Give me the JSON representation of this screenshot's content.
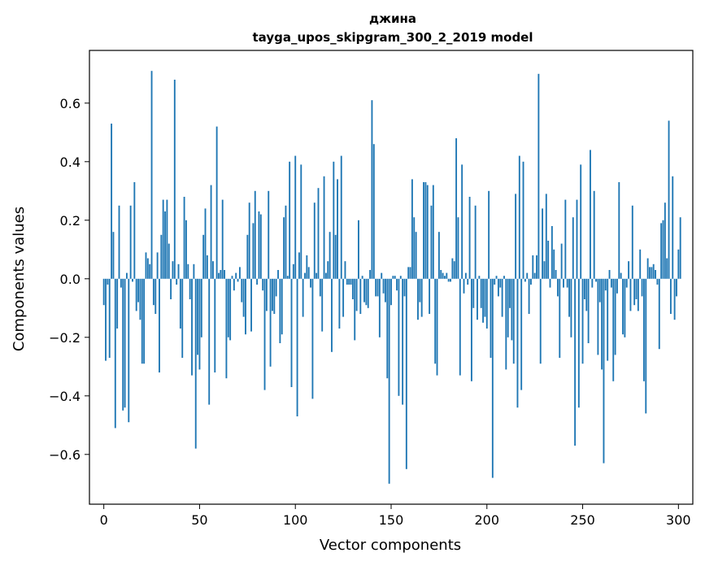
{
  "chart_data": {
    "type": "bar",
    "title": "джина",
    "subtitle": "tayga_upos_skipgram_300_2_2019 model",
    "xlabel": "Vector components",
    "ylabel": "Components values",
    "xlim": [
      -7.5,
      307.5
    ],
    "ylim": [
      -0.77,
      0.78
    ],
    "xticks": [
      0,
      50,
      100,
      150,
      200,
      250,
      300
    ],
    "xtick_labels": [
      "0",
      "50",
      "100",
      "150",
      "200",
      "250",
      "300"
    ],
    "yticks": [
      -0.6,
      -0.4,
      -0.2,
      0.0,
      0.2,
      0.4,
      0.6
    ],
    "ytick_labels": [
      "−0.6",
      "−0.4",
      "−0.2",
      "0.0",
      "0.2",
      "0.4",
      "0.6"
    ],
    "bar_color": "#1f77b4",
    "values": [
      -0.09,
      -0.28,
      -0.02,
      -0.27,
      0.53,
      0.16,
      -0.51,
      -0.17,
      0.25,
      -0.03,
      -0.45,
      -0.44,
      0.02,
      -0.49,
      0.25,
      -0.01,
      0.33,
      -0.11,
      -0.08,
      -0.14,
      -0.29,
      -0.29,
      0.09,
      0.07,
      0.05,
      0.71,
      -0.09,
      -0.12,
      0.09,
      -0.32,
      0.15,
      0.27,
      0.23,
      0.27,
      0.12,
      -0.07,
      0.06,
      0.68,
      -0.02,
      0.05,
      -0.17,
      -0.27,
      0.28,
      0.2,
      0.05,
      -0.07,
      -0.33,
      0.05,
      -0.58,
      -0.26,
      -0.31,
      -0.2,
      0.15,
      0.24,
      0.08,
      -0.43,
      0.32,
      0.06,
      -0.32,
      0.52,
      0.02,
      0.03,
      0.27,
      0.03,
      -0.34,
      -0.2,
      -0.21,
      0.01,
      -0.04,
      0.02,
      -0.01,
      0.04,
      -0.08,
      -0.13,
      -0.19,
      0.15,
      0.26,
      -0.18,
      0.19,
      0.3,
      -0.02,
      0.23,
      0.22,
      -0.04,
      -0.38,
      -0.11,
      0.3,
      -0.3,
      -0.11,
      -0.12,
      -0.06,
      0.03,
      -0.22,
      -0.19,
      0.21,
      0.25,
      0.01,
      0.4,
      -0.37,
      0.05,
      0.42,
      -0.47,
      0.09,
      0.39,
      -0.13,
      0.02,
      0.08,
      0.04,
      -0.03,
      -0.41,
      0.26,
      0.02,
      0.31,
      -0.06,
      -0.18,
      0.35,
      0.02,
      0.06,
      0.16,
      -0.25,
      0.4,
      0.15,
      0.34,
      -0.17,
      0.42,
      -0.13,
      0.06,
      -0.02,
      -0.02,
      -0.02,
      -0.07,
      -0.21,
      -0.11,
      0.2,
      -0.12,
      0.01,
      -0.08,
      -0.09,
      -0.1,
      0.03,
      0.61,
      0.46,
      -0.06,
      -0.06,
      -0.2,
      0.02,
      -0.05,
      -0.08,
      -0.34,
      -0.7,
      -0.09,
      0.01,
      0.01,
      -0.04,
      -0.4,
      0.01,
      -0.43,
      -0.06,
      -0.65,
      0.04,
      0.04,
      0.34,
      0.21,
      0.16,
      -0.14,
      -0.08,
      -0.13,
      0.33,
      0.33,
      0.32,
      -0.12,
      0.25,
      0.32,
      -0.29,
      -0.33,
      0.16,
      0.03,
      0.02,
      0.01,
      0.02,
      -0.01,
      -0.01,
      0.07,
      0.06,
      0.48,
      0.21,
      -0.33,
      0.39,
      -0.05,
      0.02,
      -0.02,
      0.28,
      -0.35,
      -0.1,
      0.25,
      -0.14,
      0.01,
      -0.1,
      -0.15,
      -0.13,
      -0.17,
      0.3,
      -0.27,
      -0.68,
      -0.02,
      0.01,
      -0.06,
      -0.03,
      -0.13,
      0.01,
      -0.31,
      -0.2,
      -0.1,
      -0.21,
      -0.29,
      0.29,
      -0.44,
      0.42,
      -0.38,
      0.4,
      -0.01,
      0.02,
      -0.12,
      -0.02,
      0.08,
      0.02,
      0.08,
      0.7,
      -0.29,
      0.24,
      0.06,
      0.29,
      0.13,
      -0.03,
      0.18,
      0.1,
      0.03,
      -0.06,
      -0.27,
      0.12,
      -0.03,
      0.27,
      -0.03,
      -0.13,
      -0.2,
      0.21,
      -0.57,
      0.27,
      -0.44,
      0.39,
      -0.29,
      -0.07,
      -0.11,
      -0.22,
      0.44,
      -0.03,
      0.3,
      -0.01,
      -0.26,
      -0.08,
      -0.31,
      -0.63,
      -0.04,
      -0.28,
      0.03,
      -0.03,
      -0.35,
      -0.26,
      -0.05,
      0.33,
      0.02,
      -0.19,
      -0.2,
      -0.03,
      0.06,
      -0.11,
      0.25,
      -0.09,
      -0.07,
      -0.11,
      0.1,
      -0.06,
      -0.35,
      -0.46,
      0.07,
      0.04,
      0.04,
      0.05,
      0.03,
      -0.02,
      -0.24,
      0.19,
      0.2,
      0.26,
      0.07,
      0.54,
      -0.12,
      0.35,
      -0.14,
      -0.06,
      0.1,
      0.21
    ]
  }
}
